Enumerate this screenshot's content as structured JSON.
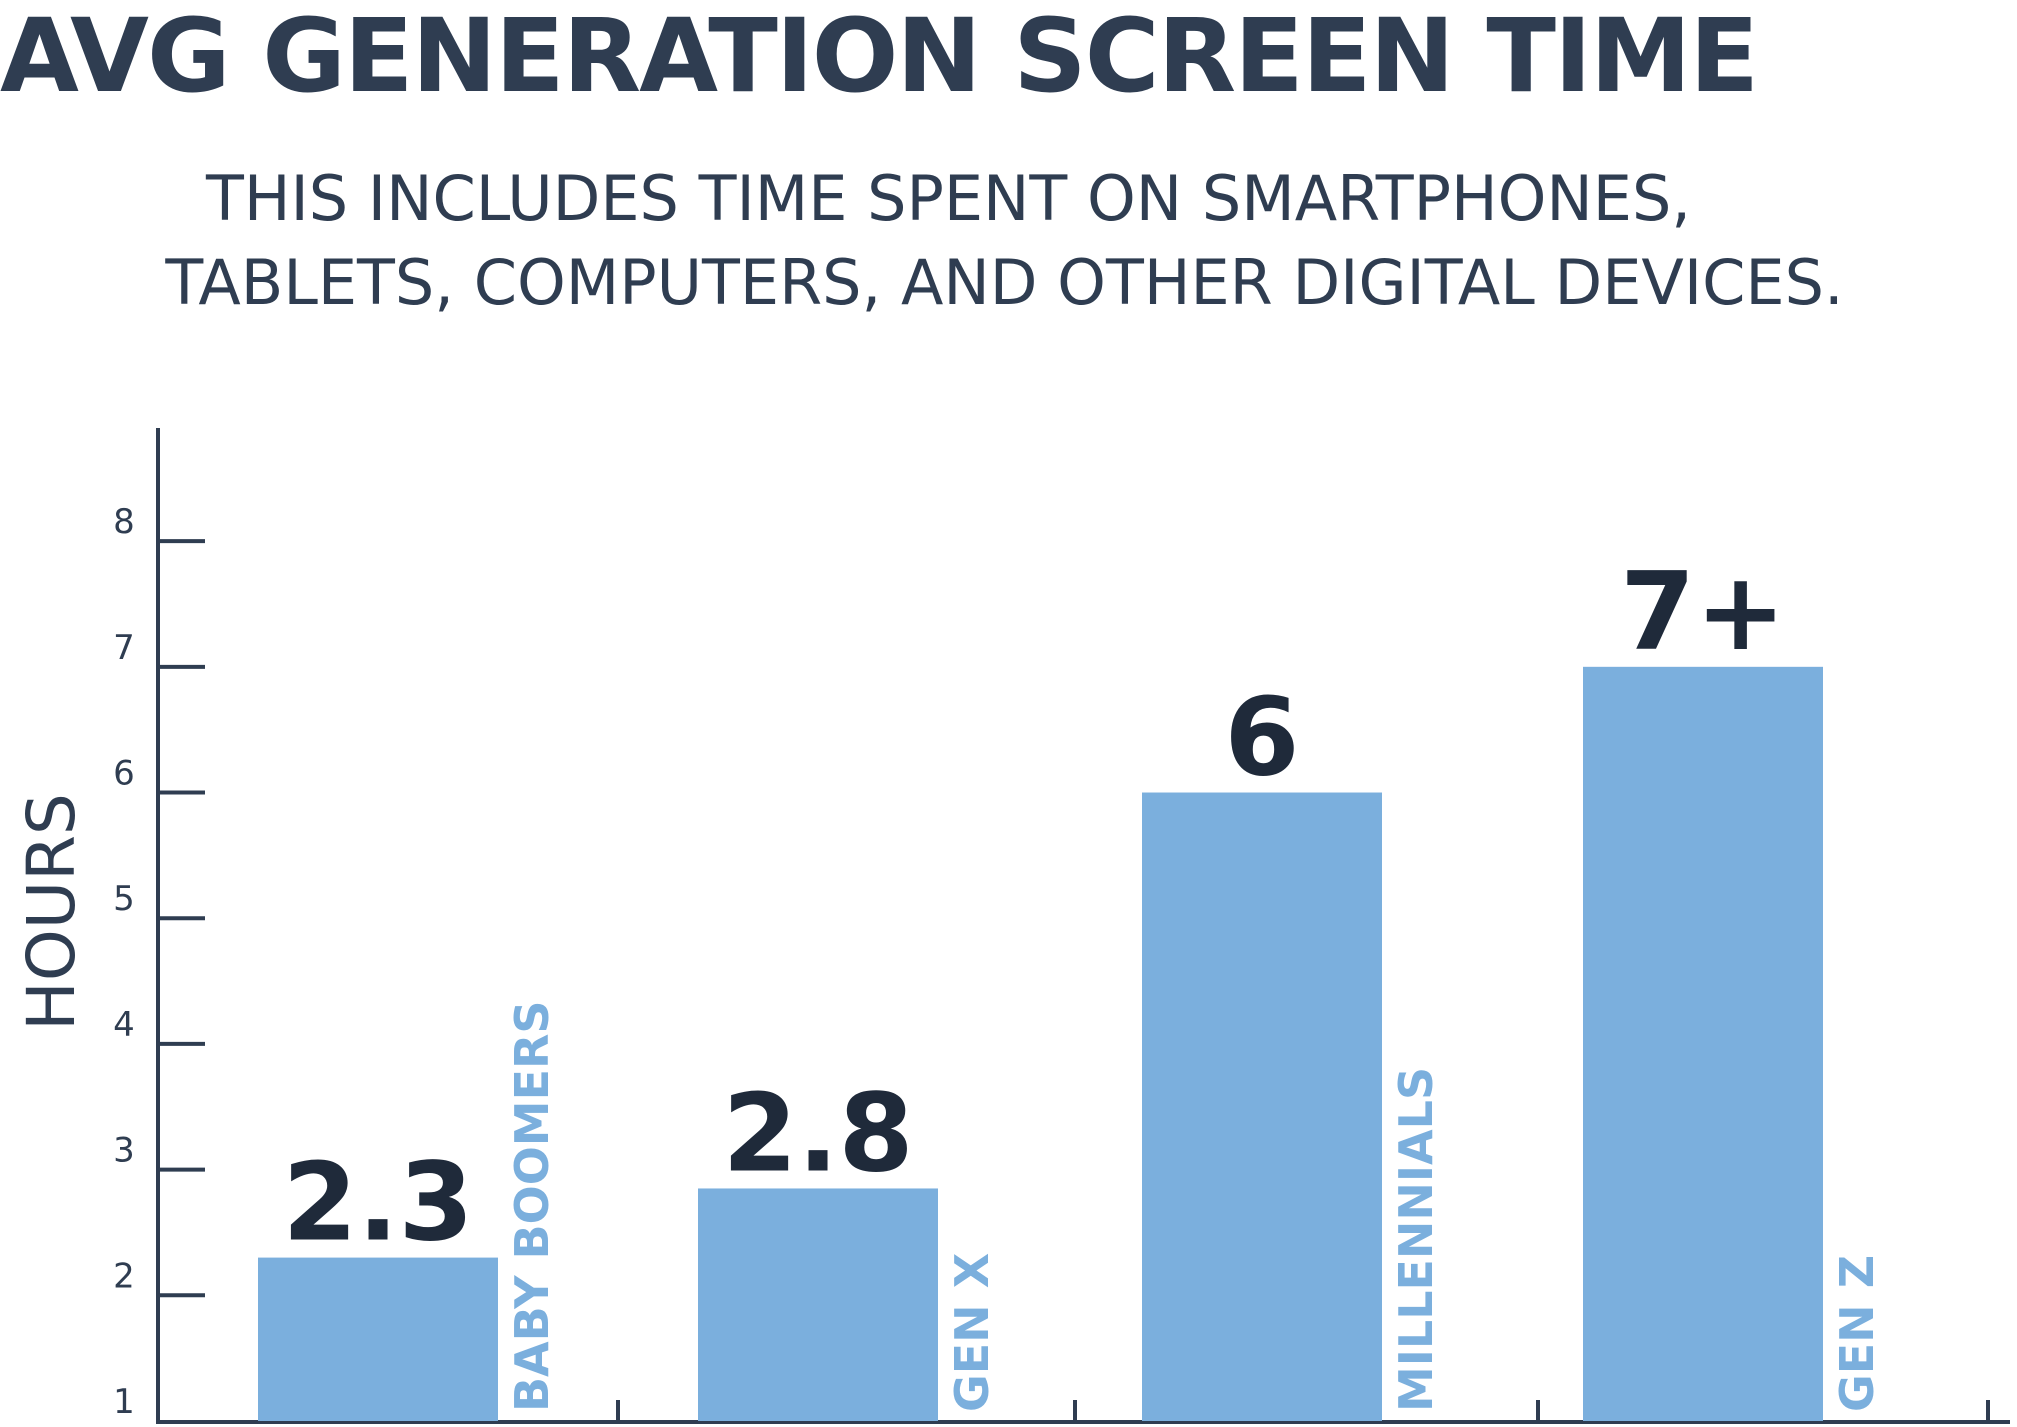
{
  "chart_data": {
    "type": "bar",
    "title": "AVG GENERATION SCREEN TIME",
    "subtitle": [
      "THIS INCLUDES TIME SPENT ON SMARTPHONES,",
      "TABLETS, COMPUTERS, AND OTHER DIGITAL DEVICES."
    ],
    "ylabel": "HOURS",
    "xlabel": "",
    "ylim": [
      1,
      8.9
    ],
    "yticks": [
      1,
      2,
      3,
      4,
      5,
      6,
      7,
      8
    ],
    "categories": [
      "BABY BOOMERS",
      "GEN X",
      "MILLENNIALS",
      "GEN Z"
    ],
    "values": [
      2.3,
      2.85,
      6,
      7
    ],
    "data_labels": [
      "2.3",
      "2.8",
      "6",
      "7+"
    ],
    "grid": false,
    "legend": "none",
    "colors": {
      "bar": "#7bafdd",
      "category_label": "#7bafdd",
      "text": "#2f3d51",
      "value_label": "#1f2a3a",
      "axis": "#2f3d51"
    }
  }
}
